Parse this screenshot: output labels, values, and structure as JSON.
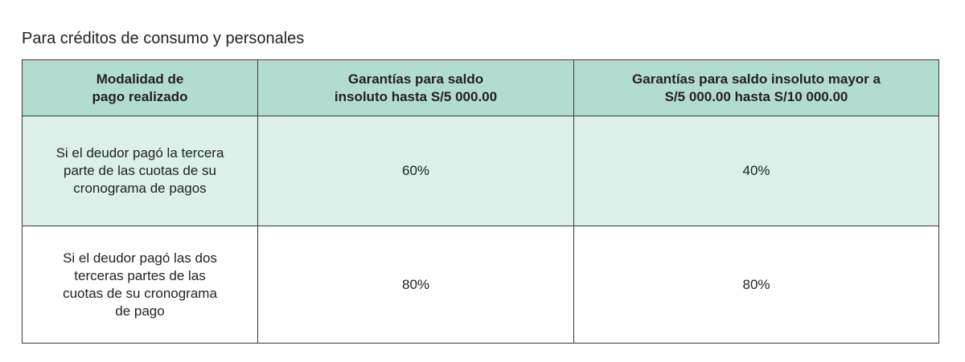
{
  "title": "Para créditos de consumo y personales",
  "table": {
    "header": [
      "Modalidad de\npago realizado",
      "Garantías para saldo\ninsoluto hasta S/5 000.00",
      "Garantías para saldo insoluto mayor a\nS/5 000.00 hasta S/10 000.00"
    ],
    "rows": [
      [
        "Si el deudor pagó la tercera\nparte de las cuotas de su\ncronograma de pagos",
        "60%",
        "40%"
      ],
      [
        "Si el deudor pagó las dos\nterceras partes de las\ncuotas de su cronograma\nde pago",
        "80%",
        "80%"
      ]
    ]
  }
}
